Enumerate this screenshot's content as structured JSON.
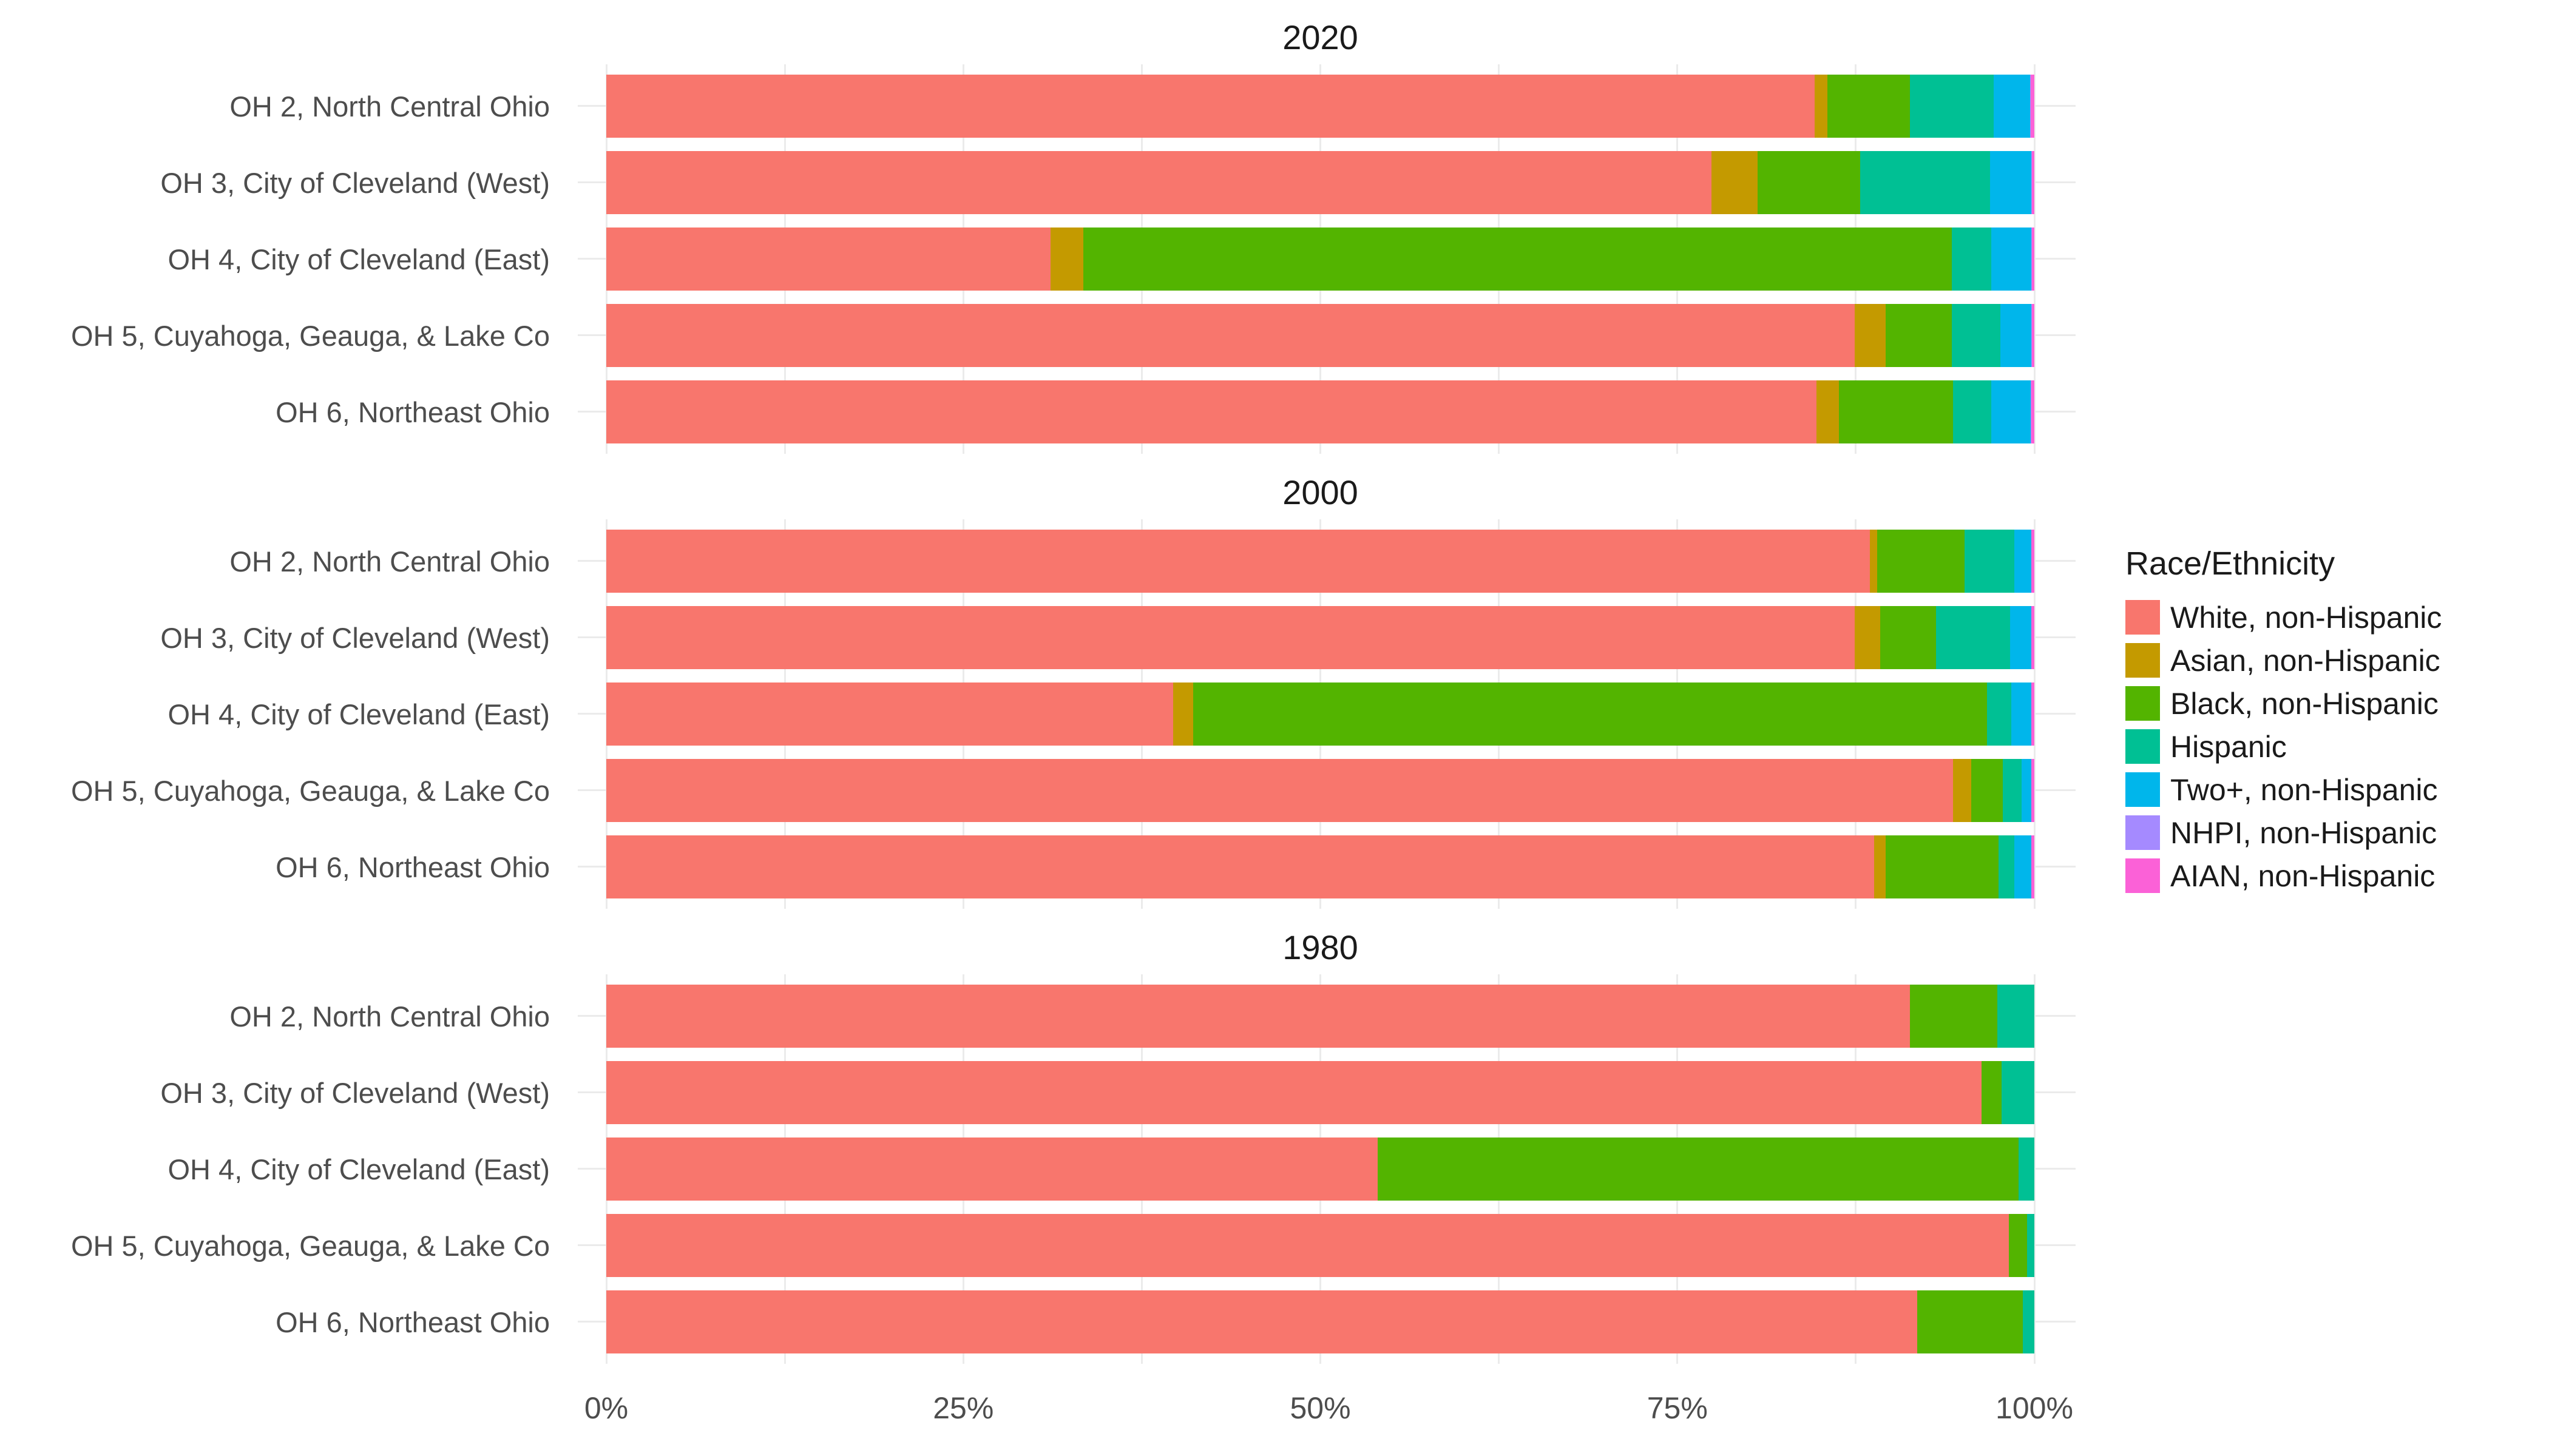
{
  "chart_data": {
    "type": "bar",
    "orientation": "horizontal",
    "stacked": true,
    "unit": "percent of population",
    "facets": "by census year",
    "categories": [
      "OH 2, North Central Ohio",
      "OH 3, City of Cleveland (West)",
      "OH 4, City of Cleveland (East)",
      "OH 5, Cuyahoga, Geauga, & Lake Co",
      "OH 6, Northeast Ohio"
    ],
    "legend": {
      "title": "Race/Ethnicity",
      "position": "right",
      "entries": [
        {
          "label": "White, non-Hispanic",
          "color": "#F8766D"
        },
        {
          "label": "Asian, non-Hispanic",
          "color": "#C49A00"
        },
        {
          "label": "Black, non-Hispanic",
          "color": "#53B400"
        },
        {
          "label": "Hispanic",
          "color": "#00C094"
        },
        {
          "label": "Two+, non-Hispanic",
          "color": "#00B6EB"
        },
        {
          "label": "NHPI, non-Hispanic",
          "color": "#A58AFF"
        },
        {
          "label": "AIAN, non-Hispanic",
          "color": "#FB61D7"
        }
      ]
    },
    "x_axis": {
      "tick_labels": [
        "0%",
        "25%",
        "50%",
        "75%",
        "100%"
      ],
      "tick_values": [
        0,
        25,
        50,
        75,
        100
      ],
      "range": [
        0,
        100
      ],
      "minor_gridline_step": 12.5,
      "grid": true
    },
    "panels": [
      {
        "title": "2020",
        "rows": [
          {
            "district": "OH 2, North Central Ohio",
            "values": [
              84.6,
              0.9,
              5.8,
              5.85,
              2.55,
              0.05,
              0.25
            ]
          },
          {
            "district": "OH 3, City of Cleveland (West)",
            "values": [
              77.4,
              3.2,
              7.2,
              9.1,
              2.9,
              0.05,
              0.15
            ]
          },
          {
            "district": "OH 4, City of Cleveland (East)",
            "values": [
              31.1,
              2.3,
              60.8,
              2.8,
              2.8,
              0.05,
              0.15
            ]
          },
          {
            "district": "OH 5, Cuyahoga, Geauga, & Lake Co",
            "values": [
              87.4,
              2.2,
              4.6,
              3.4,
              2.2,
              0.05,
              0.15
            ]
          },
          {
            "district": "OH 6, Northeast Ohio",
            "values": [
              84.75,
              1.55,
              8.0,
              2.7,
              2.75,
              0.05,
              0.2
            ]
          }
        ]
      },
      {
        "title": "2000",
        "rows": [
          {
            "district": "OH 2, North Central Ohio",
            "values": [
              88.5,
              0.5,
              6.1,
              3.5,
              1.2,
              0,
              0.2
            ]
          },
          {
            "district": "OH 3, City of Cleveland (West)",
            "values": [
              87.4,
              1.8,
              3.9,
              5.2,
              1.5,
              0,
              0.2
            ]
          },
          {
            "district": "OH 4, City of Cleveland (East)",
            "values": [
              39.7,
              1.4,
              55.6,
              1.7,
              1.4,
              0,
              0.2
            ]
          },
          {
            "district": "OH 5, Cuyahoga, Geauga, & Lake Co",
            "values": [
              94.3,
              1.3,
              2.2,
              1.3,
              0.7,
              0,
              0.2
            ]
          },
          {
            "district": "OH 6, Northeast Ohio",
            "values": [
              88.8,
              0.8,
              7.9,
              1.1,
              1.2,
              0,
              0.2
            ]
          }
        ]
      },
      {
        "title": "1980",
        "rows": [
          {
            "district": "OH 2, North Central Ohio",
            "values": [
              91.3,
              0,
              6.1,
              2.6,
              0,
              0,
              0
            ]
          },
          {
            "district": "OH 3, City of Cleveland (West)",
            "values": [
              96.3,
              0,
              1.4,
              2.3,
              0,
              0,
              0
            ]
          },
          {
            "district": "OH 4, City of Cleveland (East)",
            "values": [
              54.0,
              0,
              44.9,
              1.1,
              0,
              0,
              0
            ]
          },
          {
            "district": "OH 5, Cuyahoga, Geauga, & Lake Co",
            "values": [
              98.2,
              0,
              1.3,
              0.5,
              0,
              0,
              0
            ]
          },
          {
            "district": "OH 6, Northeast Ohio",
            "values": [
              91.8,
              0,
              7.4,
              0.8,
              0,
              0,
              0
            ]
          }
        ]
      }
    ],
    "style": {
      "gridline_color": "#EBEBEB",
      "axis_text_color": "#4D4D4D",
      "title_text_color": "#1A1A1A",
      "background_color": "#FFFFFF"
    }
  }
}
